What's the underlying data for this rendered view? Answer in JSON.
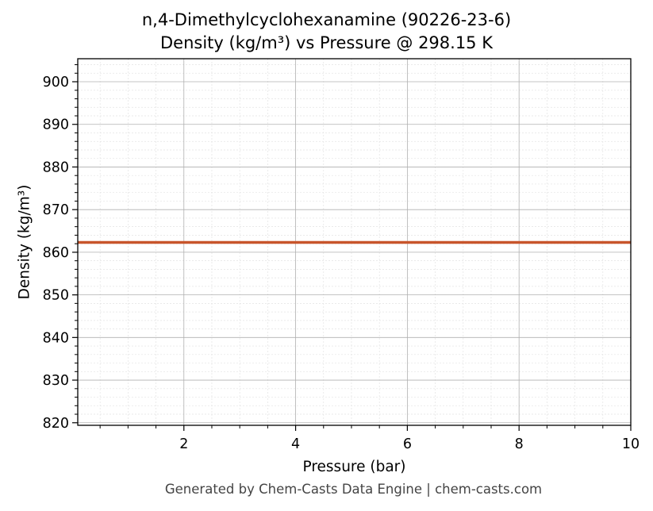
{
  "chart_data": {
    "type": "line",
    "title": "n,4-Dimethylcyclohexanamine (90226-23-6)",
    "subtitle": "Density (kg/m³) vs Pressure @ 298.15 K",
    "xlabel": "Pressure (bar)",
    "ylabel": "Density (kg/m³)",
    "xlim": [
      0.1,
      10
    ],
    "ylim": [
      819.4,
      905.4
    ],
    "xticks": [
      2,
      4,
      6,
      8,
      10
    ],
    "yticks": [
      820,
      830,
      840,
      850,
      860,
      870,
      880,
      890,
      900
    ],
    "grid": true,
    "series": [
      {
        "color": "#c8552b",
        "x": [
          0.1,
          1,
          2,
          3,
          4,
          5,
          6,
          7,
          8,
          9,
          10
        ],
        "y": [
          862.3,
          862.3,
          862.3,
          862.3,
          862.3,
          862.3,
          862.3,
          862.3,
          862.3,
          862.3,
          862.3
        ]
      }
    ]
  },
  "footer": "Generated by Chem-Casts Data Engine | chem-casts.com"
}
